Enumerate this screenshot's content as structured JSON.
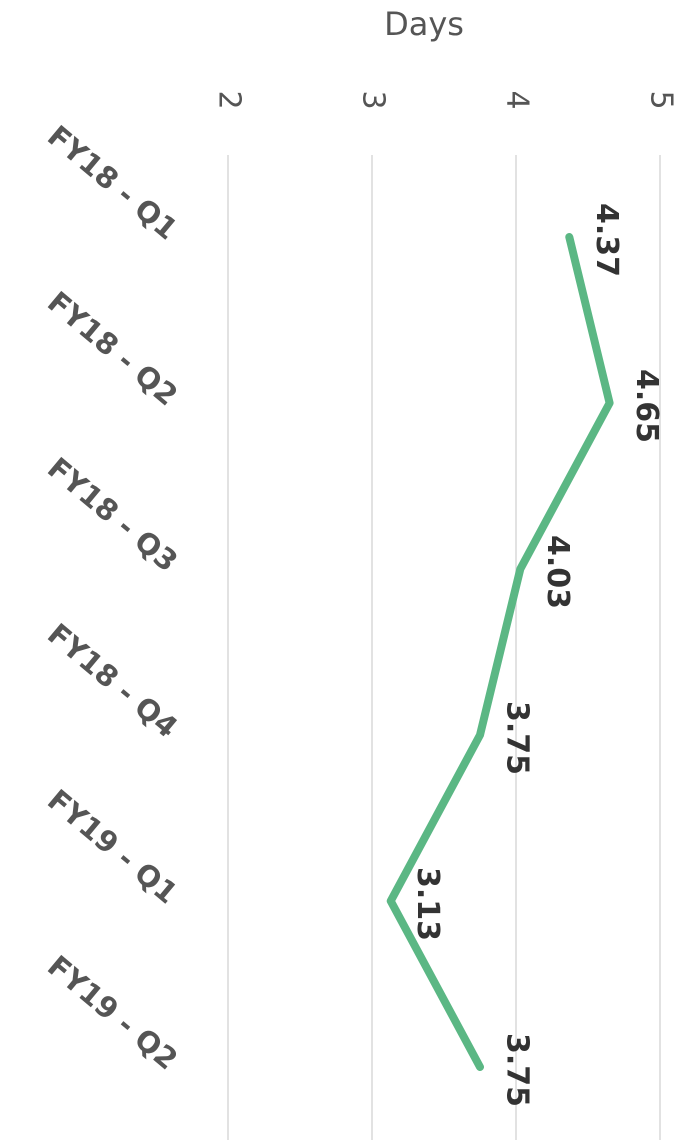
{
  "chart_data": {
    "type": "line",
    "ylabel": "Days",
    "categories": [
      "FY18 - Q1",
      "FY18 - Q2",
      "FY18 - Q3",
      "FY18 - Q4",
      "FY19 - Q1",
      "FY19 - Q2"
    ],
    "values": [
      4.37,
      4.65,
      4.03,
      3.75,
      3.13,
      3.75
    ],
    "color": "#5bb784",
    "ylim": [
      2,
      5
    ],
    "yticks": [
      2,
      3,
      4,
      5
    ],
    "grid": true
  }
}
